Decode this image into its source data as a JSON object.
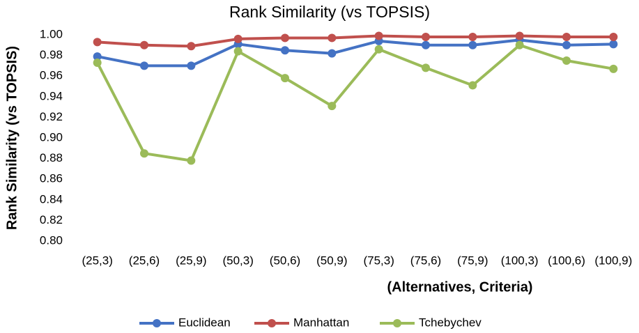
{
  "chart_data": {
    "type": "line",
    "title": "Rank Similarity  (vs TOPSIS)",
    "x_label": "(Alternatives, Criteria)",
    "y_label": "Rank Similarity  (vs TOPSIS)",
    "categories": [
      "(25,3)",
      "(25,6)",
      "(25,9)",
      "(50,3)",
      "(50,6)",
      "(50,9)",
      "(75,3)",
      "(75,6)",
      "(75,9)",
      "(100,3)",
      "(100,6)",
      "(100,9)"
    ],
    "series": [
      {
        "name": "Euclidean",
        "color": "#4472c4",
        "values": [
          0.979,
          0.97,
          0.97,
          0.991,
          0.985,
          0.982,
          0.994,
          0.99,
          0.99,
          0.995,
          0.99,
          0.991
        ]
      },
      {
        "name": "Manhattan",
        "color": "#c0504d",
        "values": [
          0.993,
          0.99,
          0.989,
          0.996,
          0.997,
          0.997,
          0.999,
          0.998,
          0.998,
          0.999,
          0.998,
          0.998
        ]
      },
      {
        "name": "Tchebychev",
        "color": "#9bbb59",
        "values": [
          0.973,
          0.885,
          0.878,
          0.984,
          0.958,
          0.931,
          0.986,
          0.968,
          0.951,
          0.99,
          0.975,
          0.967
        ]
      }
    ],
    "ylim": [
      0.8,
      1.0
    ],
    "yticks": [
      {
        "value": 0.8,
        "label": "0.80"
      },
      0.82,
      0.84,
      0.86,
      0.88,
      {
        "value": 0.9,
        "label": "0.90"
      },
      0.92,
      0.94,
      0.96,
      0.98,
      {
        "value": 1.0,
        "label": "1.00"
      }
    ],
    "grid": false,
    "legend": "bottom"
  }
}
